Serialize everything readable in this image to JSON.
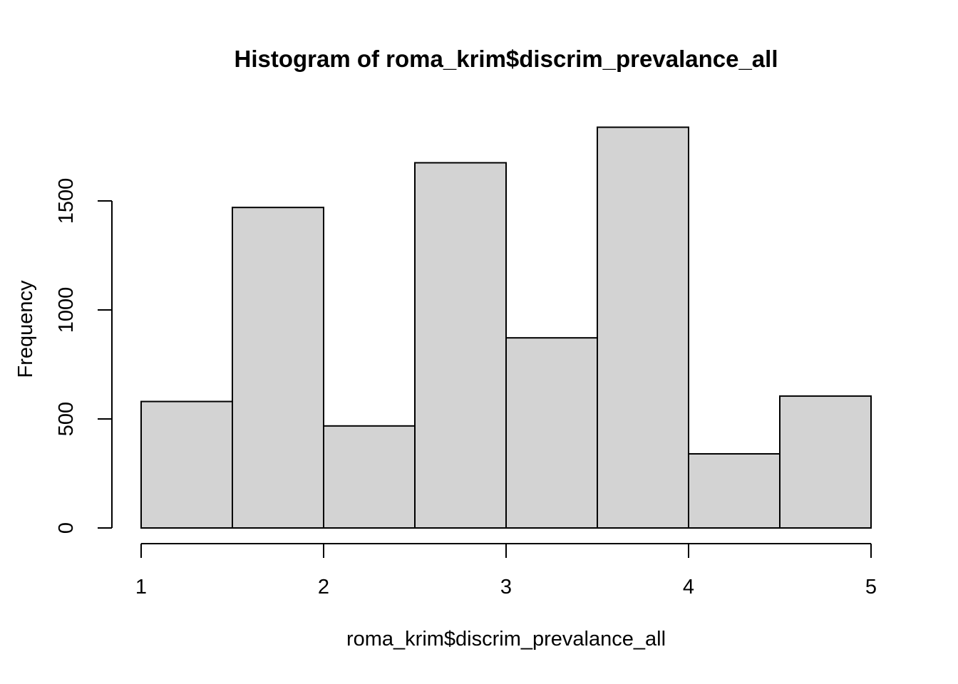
{
  "chart_data": {
    "type": "bar",
    "subtype": "histogram",
    "title": "Histogram of roma_krim$discrim_prevalance_all",
    "xlabel": "roma_krim$discrim_prevalance_all",
    "ylabel": "Frequency",
    "breaks": [
      1,
      1.5,
      2,
      2.5,
      3,
      3.5,
      4,
      4.5,
      5
    ],
    "counts": [
      580,
      1470,
      468,
      1675,
      872,
      1838,
      340,
      605
    ],
    "x_ticks": [
      "1",
      "2",
      "3",
      "4",
      "5"
    ],
    "x_tick_values": [
      1,
      2,
      3,
      4,
      5
    ],
    "y_ticks": [
      "0",
      "500",
      "1000",
      "1500"
    ],
    "y_tick_values": [
      0,
      500,
      1000,
      1500
    ],
    "xlim": [
      1,
      5
    ],
    "ylim": [
      0,
      1500
    ],
    "grid": "off",
    "legend": "none",
    "bar_fill": "#D3D3D3",
    "bar_stroke": "#000000",
    "background": "#FFFFFF"
  }
}
